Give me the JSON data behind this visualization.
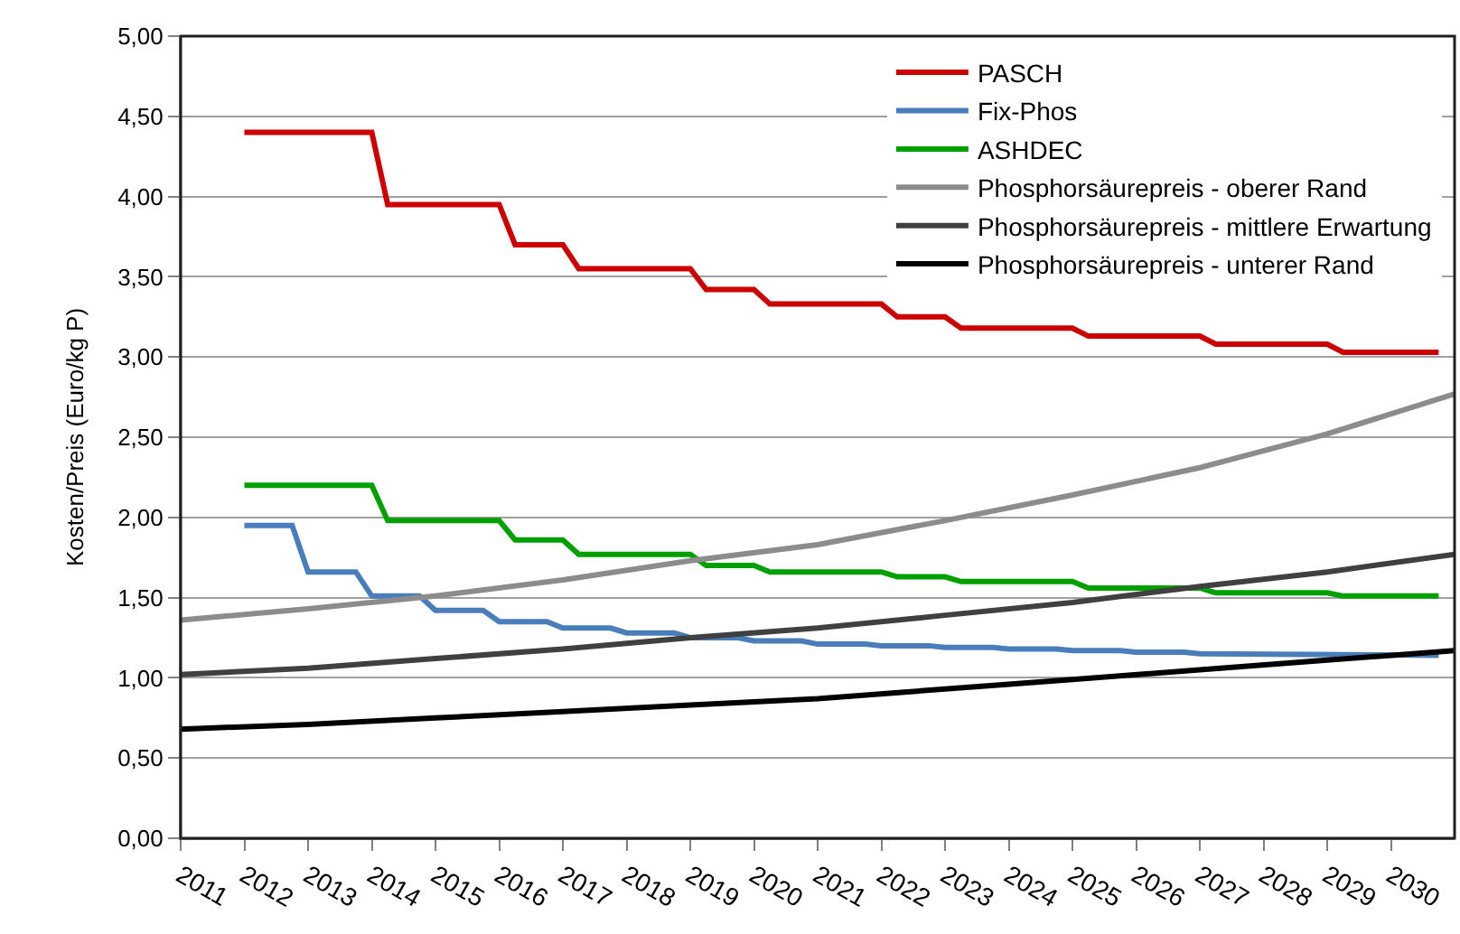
{
  "chart_data": {
    "type": "line",
    "ylabel": "Kosten/Preis (Euro/kg P)",
    "xlim": [
      2011,
      2031
    ],
    "xticks": [
      2011,
      2012,
      2013,
      2014,
      2015,
      2016,
      2017,
      2018,
      2019,
      2020,
      2021,
      2022,
      2023,
      2024,
      2025,
      2026,
      2027,
      2028,
      2029,
      2030
    ],
    "ylim": [
      0,
      5
    ],
    "yticks": [
      {
        "value": 0,
        "label": "0,00"
      },
      {
        "value": 0.5,
        "label": "0,50"
      },
      {
        "value": 1,
        "label": "1,00"
      },
      {
        "value": 1.5,
        "label": "1,50"
      },
      {
        "value": 2,
        "label": "2,00"
      },
      {
        "value": 2.5,
        "label": "2,50"
      },
      {
        "value": 3,
        "label": "3,00"
      },
      {
        "value": 3.5,
        "label": "3,50"
      },
      {
        "value": 4,
        "label": "4,00"
      },
      {
        "value": 4.5,
        "label": "4,50"
      },
      {
        "value": 5,
        "label": "5,00"
      }
    ],
    "grid": "y",
    "legend": "top right",
    "marker": "none",
    "line_style": "solid",
    "series": [
      {
        "name": "PASCH",
        "color": "#cc0000",
        "x": [
          2012,
          2014,
          2014.25,
          2016,
          2016.25,
          2017,
          2017.25,
          2019,
          2019.25,
          2020,
          2020.25,
          2022,
          2022.25,
          2023,
          2023.25,
          2025,
          2025.25,
          2027,
          2027.25,
          2029,
          2029.25,
          2030.75
        ],
        "values": [
          4.4,
          4.4,
          3.95,
          3.95,
          3.7,
          3.7,
          3.55,
          3.55,
          3.42,
          3.42,
          3.33,
          3.33,
          3.25,
          3.25,
          3.18,
          3.18,
          3.13,
          3.13,
          3.08,
          3.08,
          3.03,
          3.03
        ]
      },
      {
        "name": "Fix-Phos",
        "color": "#4a7ebb",
        "x": [
          2012,
          2012.75,
          2013,
          2013.75,
          2014,
          2014.75,
          2015,
          2015.75,
          2016,
          2016.75,
          2017,
          2017.75,
          2018,
          2018.75,
          2019,
          2019.75,
          2020,
          2020.75,
          2021,
          2021.75,
          2022,
          2022.75,
          2023,
          2023.75,
          2024,
          2024.75,
          2025,
          2025.75,
          2026,
          2026.75,
          2027,
          2030.75
        ],
        "values": [
          1.95,
          1.95,
          1.66,
          1.66,
          1.51,
          1.51,
          1.42,
          1.42,
          1.35,
          1.35,
          1.31,
          1.31,
          1.28,
          1.28,
          1.25,
          1.25,
          1.23,
          1.23,
          1.21,
          1.21,
          1.2,
          1.2,
          1.19,
          1.19,
          1.18,
          1.18,
          1.17,
          1.17,
          1.16,
          1.16,
          1.15,
          1.14
        ]
      },
      {
        "name": "ASHDEC",
        "color": "#00a000",
        "x": [
          2012,
          2014,
          2014.25,
          2016,
          2016.25,
          2017,
          2017.25,
          2019,
          2019.25,
          2020,
          2020.25,
          2022,
          2022.25,
          2023,
          2023.25,
          2025,
          2025.25,
          2027,
          2027.25,
          2029,
          2029.25,
          2030.75
        ],
        "values": [
          2.2,
          2.2,
          1.98,
          1.98,
          1.86,
          1.86,
          1.77,
          1.77,
          1.7,
          1.7,
          1.66,
          1.66,
          1.63,
          1.63,
          1.6,
          1.6,
          1.56,
          1.56,
          1.53,
          1.53,
          1.51,
          1.51
        ]
      },
      {
        "name": "Phosphorsäurepreis - oberer Rand",
        "color": "#8c8c8c",
        "x": [
          2011,
          2013,
          2015,
          2017,
          2019,
          2021,
          2023,
          2025,
          2027,
          2029,
          2031
        ],
        "values": [
          1.36,
          1.43,
          1.51,
          1.61,
          1.73,
          1.83,
          1.98,
          2.14,
          2.31,
          2.52,
          2.77
        ]
      },
      {
        "name": "Phosphorsäurepreis - mittlere Erwartung",
        "color": "#404040",
        "x": [
          2011,
          2013,
          2015,
          2017,
          2019,
          2021,
          2023,
          2025,
          2027,
          2029,
          2031
        ],
        "values": [
          1.02,
          1.06,
          1.12,
          1.18,
          1.25,
          1.31,
          1.39,
          1.47,
          1.57,
          1.66,
          1.77
        ]
      },
      {
        "name": "Phosphorsäurepreis - unterer Rand",
        "color": "#000000",
        "x": [
          2011,
          2013,
          2015,
          2017,
          2019,
          2021,
          2023,
          2025,
          2027,
          2029,
          2031
        ],
        "values": [
          0.68,
          0.71,
          0.75,
          0.79,
          0.83,
          0.87,
          0.93,
          0.99,
          1.05,
          1.11,
          1.17
        ]
      }
    ]
  }
}
